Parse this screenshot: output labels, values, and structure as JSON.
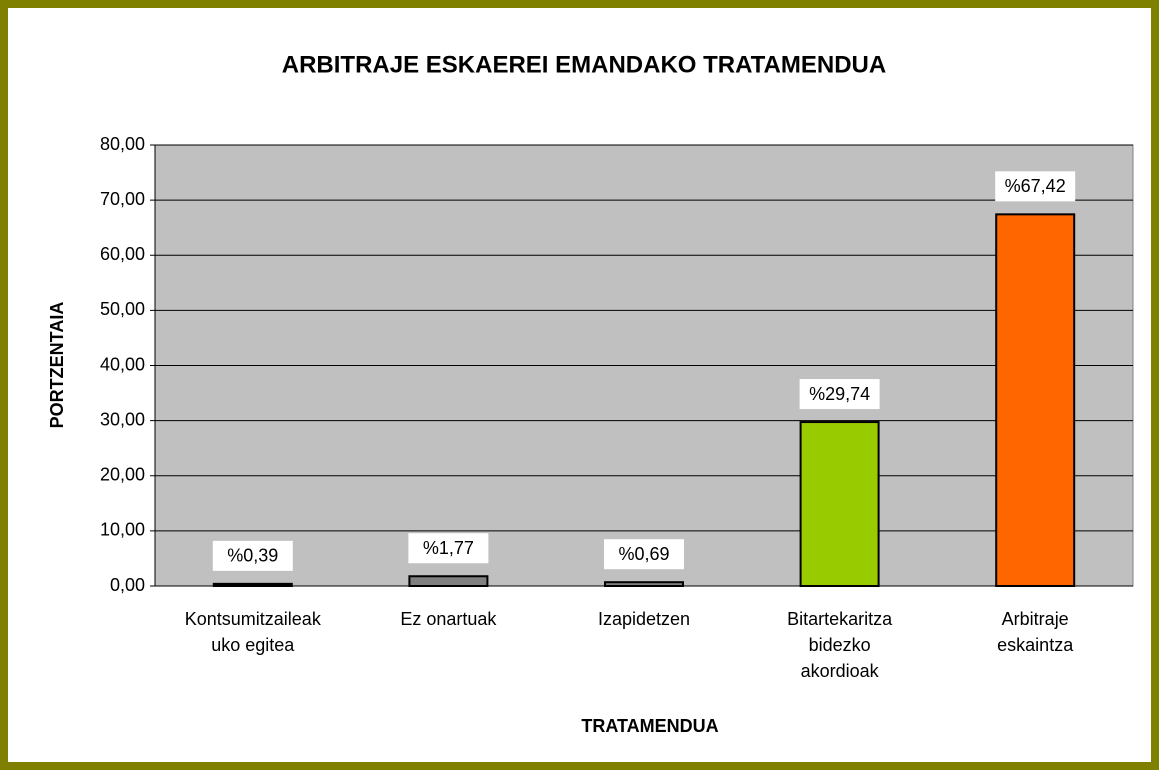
{
  "chart_data": {
    "type": "bar",
    "title": "ARBITRAJE ESKAEREI EMANDAKO TRATAMENDUA",
    "xlabel": "TRATAMENDUA",
    "ylabel": "PORTZENTAIA",
    "categories": [
      "Kontsumitzaileak\nuko egitea",
      "Ez onartuak",
      "Izapidetzen",
      "Bitartekaritza\nbidezko\nakordioak",
      "Arbitraje\neskaintza"
    ],
    "values": [
      0.39,
      1.77,
      0.69,
      29.74,
      67.42
    ],
    "value_labels": [
      "%0,39",
      "%1,77",
      "%0,69",
      "%29,74",
      "%67,42"
    ],
    "colors": [
      "#000000",
      "#808080",
      "#808080",
      "#99cc00",
      "#ff6600"
    ],
    "ylim": [
      0,
      80
    ],
    "yticks": [
      {
        "value": 0,
        "label": "0,00"
      },
      {
        "value": 10,
        "label": "10,00"
      },
      {
        "value": 20,
        "label": "20,00"
      },
      {
        "value": 30,
        "label": "30,00"
      },
      {
        "value": 40,
        "label": "40,00"
      },
      {
        "value": 50,
        "label": "50,00"
      },
      {
        "value": 60,
        "label": "60,00"
      },
      {
        "value": 70,
        "label": "70,00"
      },
      {
        "value": 80,
        "label": "80,00"
      }
    ],
    "grid": true
  }
}
